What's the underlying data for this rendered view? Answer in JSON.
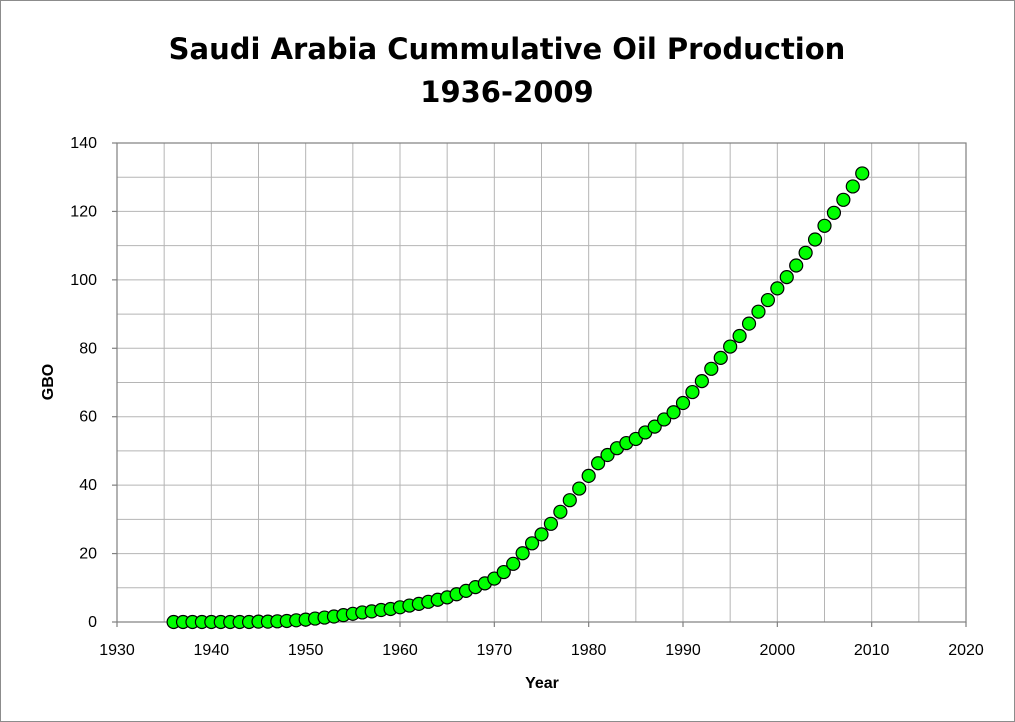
{
  "chart_data": {
    "type": "scatter",
    "title_line1": "Saudi Arabia Cummulative Oil Production",
    "title_line2": "1936-2009",
    "xlabel": "Year",
    "ylabel": "GBO",
    "xlim": [
      1930,
      2020
    ],
    "ylim": [
      0,
      140
    ],
    "xticks": [
      1930,
      1940,
      1950,
      1960,
      1970,
      1980,
      1990,
      2000,
      2010,
      2020
    ],
    "yticks": [
      0,
      20,
      40,
      60,
      80,
      100,
      120,
      140
    ],
    "x_minor_step": 5,
    "y_minor_step": 10,
    "grid": true,
    "legend": false,
    "marker_color": "#00ff00",
    "marker_edge": "#000000",
    "x": [
      1936,
      1937,
      1938,
      1939,
      1940,
      1941,
      1942,
      1943,
      1944,
      1945,
      1946,
      1947,
      1948,
      1949,
      1950,
      1951,
      1952,
      1953,
      1954,
      1955,
      1956,
      1957,
      1958,
      1959,
      1960,
      1961,
      1962,
      1963,
      1964,
      1965,
      1966,
      1967,
      1968,
      1969,
      1970,
      1971,
      1972,
      1973,
      1974,
      1975,
      1976,
      1977,
      1978,
      1979,
      1980,
      1981,
      1982,
      1983,
      1984,
      1985,
      1986,
      1987,
      1988,
      1989,
      1990,
      1991,
      1992,
      1993,
      1994,
      1995,
      1996,
      1997,
      1998,
      1999,
      2000,
      2001,
      2002,
      2003,
      2004,
      2005,
      2006,
      2007,
      2008,
      2009
    ],
    "y": [
      0.0,
      0.0,
      0.0,
      0.0,
      0.0,
      0.0,
      0.0,
      0.0,
      0.0,
      0.1,
      0.1,
      0.2,
      0.3,
      0.5,
      0.7,
      1.0,
      1.3,
      1.6,
      2.0,
      2.4,
      2.8,
      3.1,
      3.5,
      3.8,
      4.3,
      4.8,
      5.3,
      5.9,
      6.5,
      7.2,
      8.1,
      9.1,
      10.2,
      11.3,
      12.7,
      14.6,
      17.0,
      20.1,
      23.0,
      25.6,
      28.7,
      32.2,
      35.6,
      39.0,
      42.7,
      46.4,
      48.8,
      50.8,
      52.3,
      53.5,
      55.4,
      57.1,
      59.2,
      61.3,
      64.0,
      67.2,
      70.4,
      74.0,
      77.2,
      80.5,
      83.6,
      87.2,
      90.7,
      94.1,
      97.5,
      100.8,
      104.2,
      107.9,
      111.8,
      115.8,
      119.6,
      123.4,
      127.3,
      131.1
    ]
  }
}
